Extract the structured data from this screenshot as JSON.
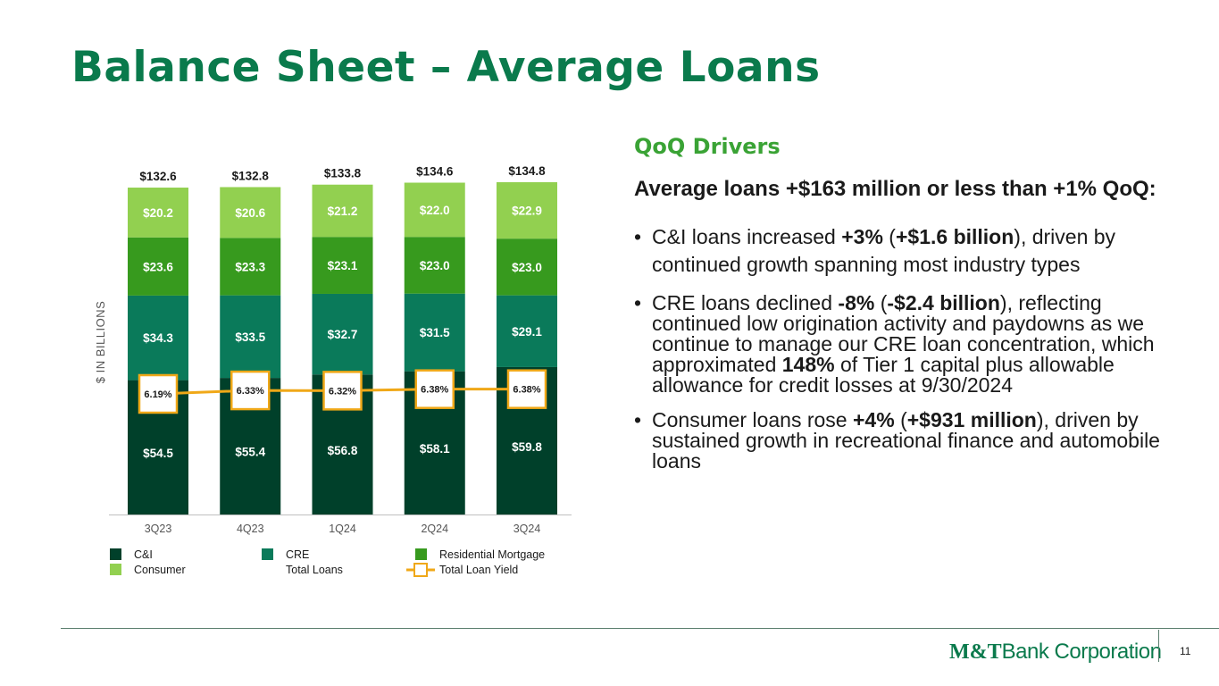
{
  "slide": {
    "title": "Balance Sheet – Average Loans",
    "page_number": "11"
  },
  "drivers": {
    "heading": "QoQ Drivers",
    "headline": "Average loans +$163 million or less than +1% QoQ:",
    "bullets": [
      {
        "pre": "C&I loans increased ",
        "b1": "+3%",
        "mid1": " (",
        "b2": "+$1.6 billion",
        "post": "), driven by continued growth spanning most industry types"
      },
      {
        "pre": "CRE loans declined ",
        "b1": "-8%",
        "mid1": " (",
        "b2": "-$2.4 billion",
        "mid2": "), reflecting continued low origination activity and paydowns as we continue to manage our CRE loan concentration, which approximated ",
        "b3": "148%",
        "post": " of Tier 1 capital plus allowable allowance for credit losses at 9/30/2024"
      },
      {
        "pre": "Consumer loans rose ",
        "b1": "+4%",
        "mid1": " (",
        "b2": "+$931 million",
        "post": "), driven by sustained growth in recreational finance and automobile loans"
      }
    ]
  },
  "logo": {
    "part1": "M&T",
    "part2": "Bank Corporation"
  },
  "chart_data": {
    "type": "bar",
    "stacked": true,
    "ylabel": "$ IN BILLIONS",
    "categories": [
      "3Q23",
      "4Q23",
      "1Q24",
      "2Q24",
      "3Q24"
    ],
    "series": [
      {
        "name": "C&I",
        "values": [
          54.5,
          55.4,
          56.8,
          58.1,
          59.8
        ],
        "labels": [
          "$54.5",
          "$55.4",
          "$56.8",
          "$58.1",
          "$59.8"
        ],
        "color": "#00402a"
      },
      {
        "name": "CRE",
        "values": [
          34.3,
          33.5,
          32.7,
          31.5,
          29.1
        ],
        "labels": [
          "$34.3",
          "$33.5",
          "$32.7",
          "$31.5",
          "$29.1"
        ],
        "color": "#0a7a5a"
      },
      {
        "name": "Residential Mortgage",
        "values": [
          23.6,
          23.3,
          23.1,
          23.0,
          23.0
        ],
        "labels": [
          "$23.6",
          "$23.3",
          "$23.1",
          "$23.0",
          "$23.0"
        ],
        "color": "#379a1e"
      },
      {
        "name": "Consumer",
        "values": [
          20.2,
          20.6,
          21.2,
          22.0,
          22.9
        ],
        "labels": [
          "$20.2",
          "$20.6",
          "$21.2",
          "$22.0",
          "$22.9"
        ],
        "color": "#92d050"
      }
    ],
    "totals": {
      "name": "Total Loans",
      "values": [
        132.6,
        132.8,
        133.8,
        134.6,
        134.8
      ],
      "labels": [
        "$132.6",
        "$132.8",
        "$133.8",
        "$134.6",
        "$134.8"
      ]
    },
    "yield": {
      "name": "Total Loan Yield",
      "values": [
        6.19,
        6.33,
        6.32,
        6.38,
        6.38
      ],
      "labels": [
        "6.19%",
        "6.33%",
        "6.32%",
        "6.38%",
        "6.38%"
      ],
      "color": "#f0a818"
    },
    "legend": [
      {
        "name": "C&I",
        "color": "#00402a",
        "kind": "square"
      },
      {
        "name": "CRE",
        "color": "#0a7a5a",
        "kind": "square"
      },
      {
        "name": "Residential Mortgage",
        "color": "#379a1e",
        "kind": "square"
      },
      {
        "name": "Consumer",
        "color": "#92d050",
        "kind": "square"
      },
      {
        "name": "Total Loans",
        "color": "",
        "kind": "none"
      },
      {
        "name": "Total Loan Yield",
        "color": "#f0a818",
        "kind": "line-marker"
      }
    ],
    "legend_position": "bottom",
    "grid": false
  }
}
